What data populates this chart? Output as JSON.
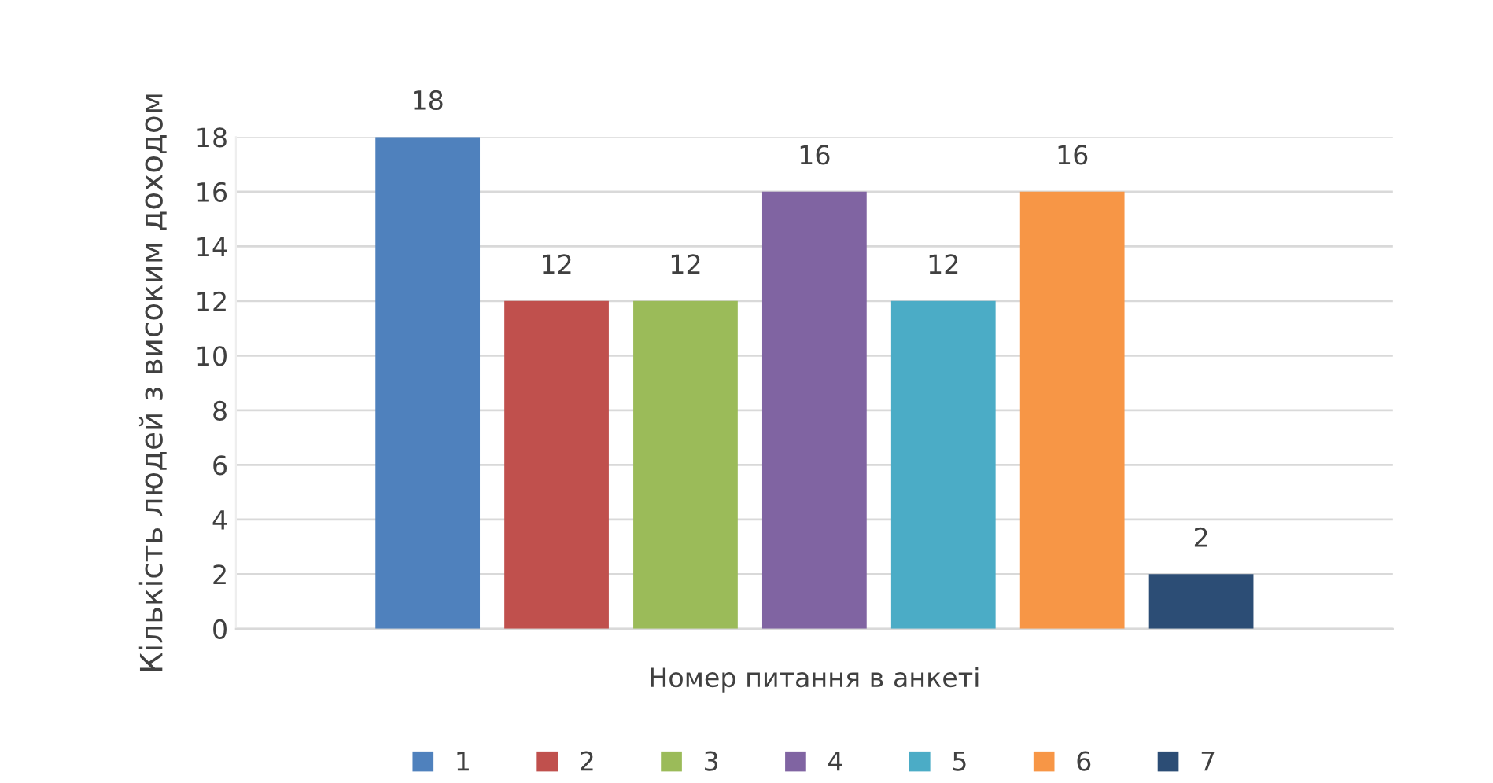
{
  "chart_data": {
    "type": "bar",
    "xlabel": "Номер питання в анкеті",
    "ylabel": "Кількість людей з високим доходом",
    "categories": [
      null
    ],
    "series": [
      {
        "name": "1",
        "color": "#4f81bd",
        "values": [
          18
        ]
      },
      {
        "name": "2",
        "color": "#c0504d",
        "values": [
          12
        ]
      },
      {
        "name": "3",
        "color": "#9bbb59",
        "values": [
          12
        ]
      },
      {
        "name": "4",
        "color": "#8064a2",
        "values": [
          16
        ]
      },
      {
        "name": "5",
        "color": "#4bacc6",
        "values": [
          12
        ]
      },
      {
        "name": "6",
        "color": "#f79646",
        "values": [
          16
        ]
      },
      {
        "name": "7",
        "color": "#2c4d75",
        "values": [
          2
        ]
      }
    ],
    "ylim": [
      0,
      18
    ],
    "yticks": [
      0,
      2,
      4,
      6,
      8,
      10,
      12,
      14,
      16,
      18
    ],
    "grid": "y",
    "legend": "bottom",
    "data_labels": true
  }
}
